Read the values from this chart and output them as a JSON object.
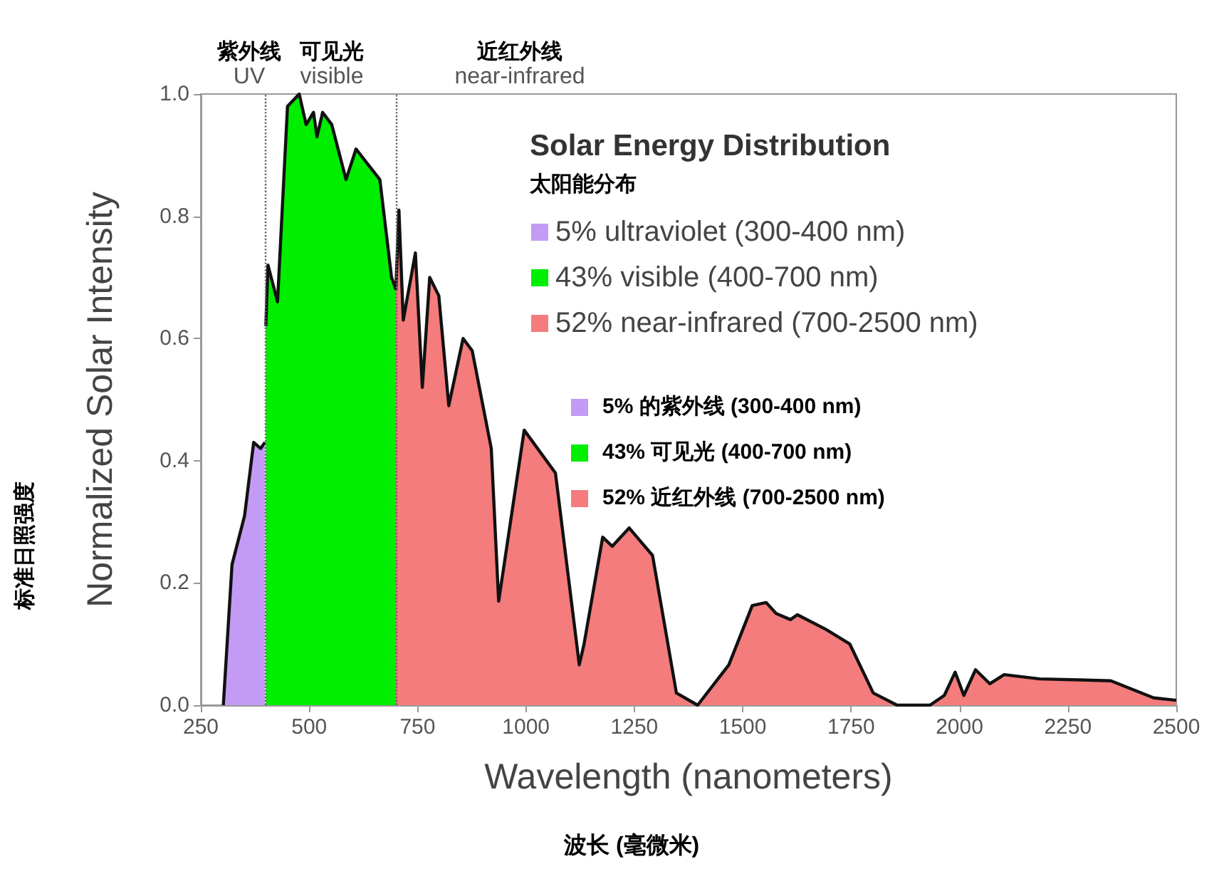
{
  "chart_data": {
    "type": "area",
    "xlabel": "Wavelength (nanometers)",
    "ylabel": "Normalized Solar Intensity",
    "legend_title": "Solar Energy Distribution",
    "legend": "top right",
    "marker": "none",
    "grid": false,
    "xlim": [
      250,
      2500
    ],
    "xticks": [
      250,
      500,
      750,
      1000,
      1250,
      1500,
      1750,
      2000,
      2250,
      2500
    ],
    "ylim": [
      0,
      1
    ],
    "yticks": [
      {
        "value": 0,
        "label": "0.0"
      },
      {
        "value": 0.2,
        "label": "0.2"
      },
      {
        "value": 0.4,
        "label": "0.4"
      },
      {
        "value": 0.6,
        "label": "0.6"
      },
      {
        "value": 0.8,
        "label": "0.8"
      },
      {
        "value": 1,
        "label": "1.0"
      }
    ],
    "series": [
      {
        "name": "5% ultraviolet (300-400 nm)",
        "color": "#c39bf5",
        "x": [
          302,
          322,
          351,
          372,
          388,
          398
        ],
        "values": [
          0,
          0.23,
          0.31,
          0.43,
          0.42,
          0.43
        ]
      },
      {
        "name": "43% visible (400-700 nm)",
        "color": "#00ee00",
        "x": [
          400,
          405,
          427,
          450,
          477,
          493,
          510,
          518,
          531,
          552,
          585,
          608,
          630,
          663,
          690,
          700
        ],
        "values": [
          0.62,
          0.72,
          0.66,
          0.98,
          1.0,
          0.95,
          0.97,
          0.93,
          0.97,
          0.95,
          0.86,
          0.91,
          0.89,
          0.86,
          0.7,
          0.68
        ]
      },
      {
        "name": "52% near-infrared (700-2500 nm)",
        "color": "#f47c7c",
        "x": [
          700,
          707,
          717,
          745,
          761,
          778,
          799,
          822,
          855,
          876,
          920,
          937,
          996,
          1068,
          1123,
          1134,
          1177,
          1199,
          1238,
          1292,
          1347,
          1396,
          1468,
          1522,
          1554,
          1577,
          1610,
          1626,
          1692,
          1747,
          1801,
          1856,
          1932,
          1965,
          1990,
          2010,
          2037,
          2070,
          2103,
          2185,
          2349,
          2448,
          2500
        ],
        "values": [
          0.68,
          0.81,
          0.63,
          0.74,
          0.52,
          0.7,
          0.67,
          0.49,
          0.6,
          0.58,
          0.42,
          0.17,
          0.45,
          0.38,
          0.066,
          0.1,
          0.275,
          0.26,
          0.29,
          0.245,
          0.02,
          0,
          0.066,
          0.163,
          0.168,
          0.15,
          0.14,
          0.148,
          0.124,
          0.1,
          0.02,
          0,
          0,
          0.016,
          0.054,
          0.016,
          0.058,
          0.035,
          0.05,
          0.043,
          0.04,
          0.012,
          0.008
        ]
      }
    ],
    "ref_lines": [
      {
        "axis": "x",
        "value": 400,
        "label": null,
        "color": "#666666",
        "line_style": "dotted"
      },
      {
        "axis": "x",
        "value": 700,
        "label": null,
        "color": "#666666",
        "line_style": "dotted"
      }
    ],
    "annotations": [
      "太阳能分布",
      "5% 的紫外线 (300-400 nm)",
      "43% 可见光 (400-700 nm)",
      "52% 近红外线 (700-2500 nm)",
      "标准日照强度",
      "波长 (毫微米)",
      "紫外线\nUV",
      "可见光\nvisible",
      "近红外线\nnear-infrared"
    ]
  }
}
